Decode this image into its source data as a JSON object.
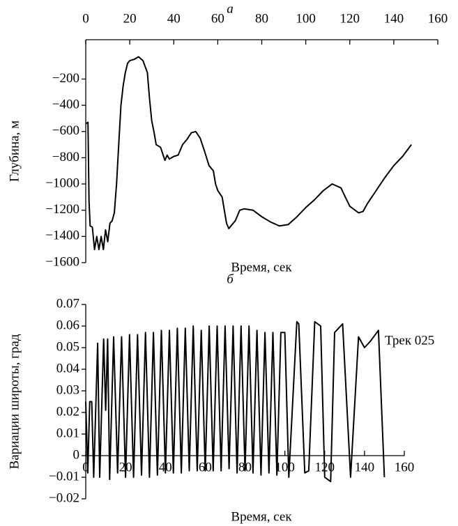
{
  "chart_data": [
    {
      "type": "line",
      "title": "а",
      "xlabel": "Время, сек",
      "ylabel": "Глубина, м",
      "xlim": [
        0,
        160
      ],
      "xticks": [
        0,
        20,
        40,
        60,
        80,
        100,
        120,
        140,
        160
      ],
      "ylim": [
        -1600,
        100
      ],
      "yticks": [
        {
          "value": -200,
          "label": "−200"
        },
        {
          "value": -400,
          "label": "−400"
        },
        {
          "value": -600,
          "label": "−600"
        },
        {
          "value": -800,
          "label": "−800"
        },
        {
          "value": -1000,
          "label": "−1000"
        },
        {
          "value": -1200,
          "label": "−1200"
        },
        {
          "value": -1400,
          "label": "−1400"
        },
        {
          "value": -1600,
          "label": "−1600"
        }
      ],
      "color": "#000000",
      "x": [
        0,
        1,
        1.5,
        2,
        3,
        4,
        5,
        6,
        7,
        8,
        9,
        10,
        11,
        12,
        13,
        14,
        15,
        16,
        17,
        18,
        19,
        20,
        22,
        24,
        26,
        28,
        29,
        30,
        31,
        32,
        34,
        36,
        37,
        38,
        40,
        42,
        44,
        46,
        48,
        50,
        52,
        54,
        56,
        58,
        59,
        60,
        62,
        63,
        64,
        65,
        66,
        68,
        70,
        72,
        76,
        80,
        84,
        88,
        92,
        96,
        100,
        104,
        108,
        112,
        116,
        118,
        120,
        124,
        126,
        128,
        132,
        136,
        140,
        144,
        148
      ],
      "values": [
        -540,
        -530,
        -1130,
        -1320,
        -1330,
        -1500,
        -1400,
        -1500,
        -1400,
        -1500,
        -1350,
        -1440,
        -1300,
        -1280,
        -1220,
        -1000,
        -700,
        -400,
        -250,
        -150,
        -80,
        -60,
        -50,
        -30,
        -60,
        -150,
        -350,
        -520,
        -600,
        -700,
        -720,
        -820,
        -780,
        -810,
        -790,
        -780,
        -700,
        -660,
        -610,
        -600,
        -650,
        -750,
        -860,
        -900,
        -1000,
        -1050,
        -1100,
        -1200,
        -1300,
        -1340,
        -1320,
        -1280,
        -1200,
        -1190,
        -1200,
        -1250,
        -1290,
        -1320,
        -1310,
        -1250,
        -1180,
        -1120,
        -1050,
        -1000,
        -1030,
        -1100,
        -1170,
        -1220,
        -1210,
        -1150,
        -1050,
        -950,
        -860,
        -790,
        -700
      ]
    },
    {
      "type": "line",
      "title": "б",
      "xlabel": "Время, сек",
      "ylabel": "Вариации широты, град",
      "annotation": "Трек 025",
      "xlim": [
        0,
        160
      ],
      "xticks": [
        0,
        20,
        40,
        60,
        80,
        100,
        120,
        140,
        160
      ],
      "ylim": [
        -0.02,
        0.07
      ],
      "yticks": [
        0.07,
        0.06,
        0.05,
        0.04,
        0.03,
        0.02,
        0.01,
        0,
        {
          "value": -0.01,
          "label": "−0.01"
        },
        {
          "value": -0.02,
          "label": "−0.02"
        }
      ],
      "color": "#000000",
      "x": [
        0,
        1,
        2,
        3,
        4,
        6,
        7,
        9,
        10,
        11,
        12,
        14,
        16,
        18,
        20,
        22,
        24,
        26,
        28,
        30,
        32,
        34,
        36,
        38,
        40,
        42,
        44,
        46,
        48,
        50,
        52,
        54,
        56,
        58,
        60,
        62,
        64,
        66,
        68,
        70,
        72,
        74,
        76,
        78,
        80,
        82,
        84,
        86,
        88,
        90,
        92,
        94,
        96,
        98,
        100,
        102,
        106,
        107,
        110,
        112,
        115,
        118,
        120,
        123,
        125,
        129,
        133,
        137,
        140,
        143,
        147,
        150
      ],
      "values": [
        0.025,
        -0.008,
        0.025,
        0.025,
        -0.01,
        0.052,
        -0.01,
        0.054,
        0.021,
        0.054,
        -0.011,
        0.055,
        -0.008,
        0.055,
        -0.01,
        0.056,
        -0.01,
        0.056,
        -0.009,
        0.057,
        -0.01,
        0.057,
        -0.009,
        0.058,
        -0.008,
        0.058,
        -0.008,
        0.059,
        -0.008,
        0.059,
        -0.007,
        0.06,
        -0.007,
        0.058,
        -0.007,
        0.06,
        -0.007,
        0.06,
        -0.007,
        0.06,
        -0.006,
        0.06,
        -0.008,
        0.06,
        -0.007,
        0.06,
        -0.008,
        0.058,
        -0.009,
        0.057,
        -0.008,
        0.057,
        -0.009,
        0.057,
        0.057,
        -0.01,
        0.062,
        0.061,
        -0.008,
        -0.007,
        0.062,
        0.06,
        -0.01,
        -0.012,
        0.057,
        0.061,
        -0.01,
        0.055,
        0.05,
        0.053,
        0.058,
        -0.01
      ]
    }
  ]
}
